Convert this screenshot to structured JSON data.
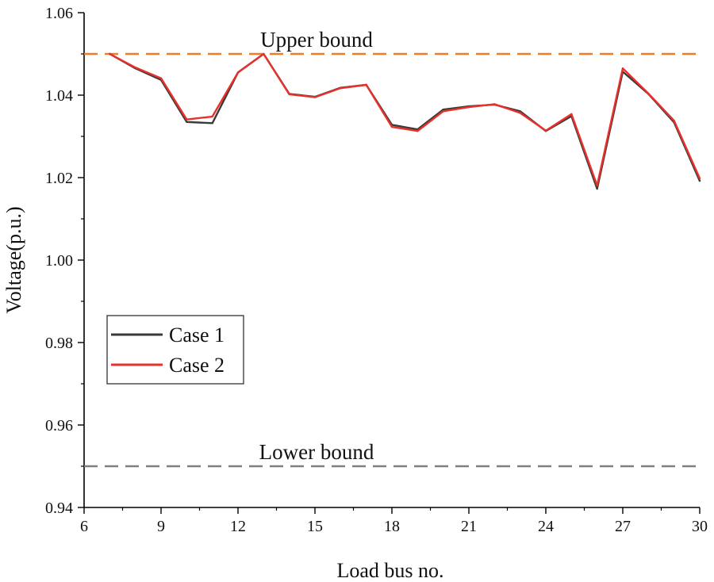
{
  "chart_data": {
    "type": "line",
    "title": "",
    "xlabel": "Load bus no.",
    "ylabel": "Voltage(p.u.)",
    "xlim": [
      6,
      30
    ],
    "ylim": [
      0.94,
      1.06
    ],
    "xticks": [
      6,
      9,
      12,
      15,
      18,
      21,
      24,
      27,
      30
    ],
    "xtick_labels": [
      "6",
      "9",
      "12",
      "15",
      "18",
      "21",
      "24",
      "27",
      "30"
    ],
    "yticks": [
      0.94,
      0.96,
      0.98,
      1.0,
      1.02,
      1.04,
      1.06
    ],
    "ytick_labels": [
      "0.94",
      "0.96",
      "0.98",
      "1.00",
      "1.02",
      "1.04",
      "1.06"
    ],
    "grid": false,
    "legend_position": "lower-left",
    "x": [
      7,
      8,
      9,
      10,
      11,
      12,
      13,
      14,
      15,
      16,
      17,
      18,
      19,
      20,
      21,
      22,
      23,
      24,
      25,
      26,
      27,
      28,
      29,
      30
    ],
    "series": [
      {
        "name": "Case 1",
        "color": "#3a3a3a",
        "values": [
          1.05,
          1.0465,
          1.0437,
          1.0335,
          1.0332,
          1.0455,
          1.05,
          1.0403,
          1.0396,
          1.0418,
          1.0425,
          1.0328,
          1.0317,
          1.0365,
          1.0373,
          1.0377,
          1.0361,
          1.0313,
          1.0349,
          1.0173,
          1.0457,
          1.0403,
          1.0334,
          1.0192
        ]
      },
      {
        "name": "Case 2",
        "color": "#e8312b",
        "values": [
          1.05,
          1.0467,
          1.0441,
          1.0341,
          1.0348,
          1.0455,
          1.05,
          1.0402,
          1.0395,
          1.0417,
          1.0425,
          1.0323,
          1.0313,
          1.0361,
          1.0371,
          1.0378,
          1.0357,
          1.0314,
          1.0354,
          1.0181,
          1.0465,
          1.0404,
          1.0338,
          1.0198
        ]
      }
    ],
    "reference_lines": [
      {
        "label": "Upper bound",
        "value": 1.05,
        "color": "#ee7d2a"
      },
      {
        "label": "Lower bound",
        "value": 0.95,
        "color": "#7f7f7f"
      }
    ]
  }
}
